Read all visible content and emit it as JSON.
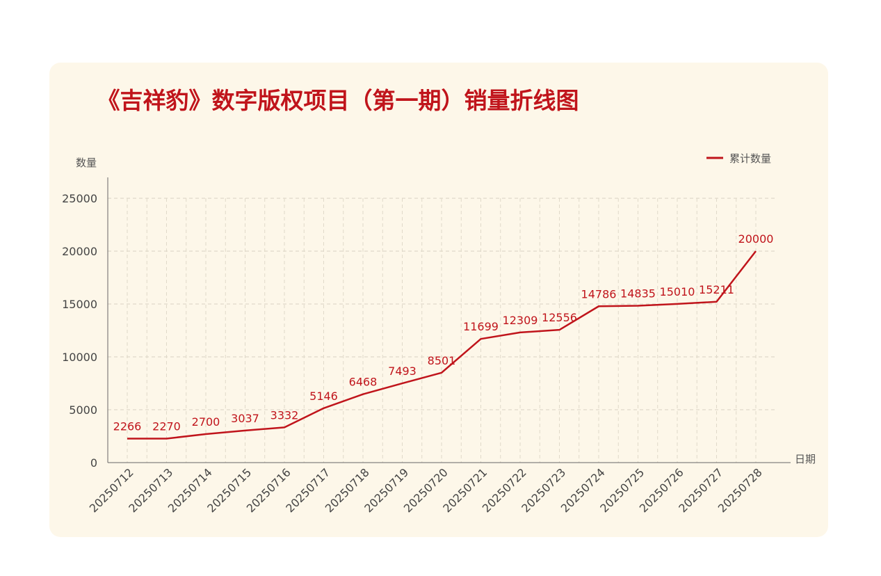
{
  "chart_data": {
    "type": "line",
    "title": "《吉祥豹》数字版权项目（第一期）销量折线图",
    "xlabel": "日期",
    "ylabel": "数量",
    "ylim": [
      0,
      25000
    ],
    "yticks": [
      0,
      5000,
      10000,
      15000,
      20000,
      25000
    ],
    "grid": true,
    "legend_position": "top-right",
    "categories": [
      "20250712",
      "20250713",
      "20250714",
      "20250715",
      "20250716",
      "20250717",
      "20250718",
      "20250719",
      "20250720",
      "20250721",
      "20250722",
      "20250723",
      "20250724",
      "20250725",
      "20250726",
      "20250727",
      "20250728"
    ],
    "series": [
      {
        "name": "累计数量",
        "color": "#c0141b",
        "values": [
          2266,
          2270,
          2700,
          3037,
          3332,
          5146,
          6468,
          7493,
          8501,
          11699,
          12309,
          12556,
          14786,
          14835,
          15010,
          15211,
          20000
        ]
      }
    ]
  },
  "colors": {
    "accent": "#c0141b",
    "card_background": "#fdf7e9"
  }
}
